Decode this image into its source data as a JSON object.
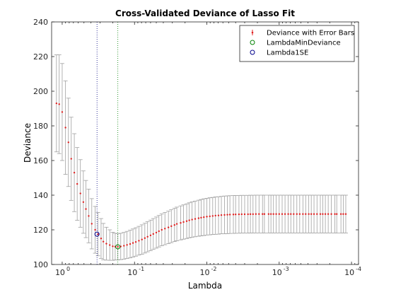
{
  "chart_data": {
    "type": "scatter",
    "title": "Cross-Validated Deviance of Lasso Fit",
    "xlabel": "Lambda",
    "ylabel": "Deviance",
    "x_scale": "log",
    "x_reversed": true,
    "xlim": [
      1.4,
      8e-05
    ],
    "ylim": [
      100,
      240
    ],
    "yticks": [
      100,
      120,
      140,
      160,
      180,
      200,
      220,
      240
    ],
    "xticks": [
      {
        "value": 1,
        "label": "10",
        "exp": "0"
      },
      {
        "value": 0.1,
        "label": "10",
        "exp": "-1"
      },
      {
        "value": 0.01,
        "label": "10",
        "exp": "-2"
      },
      {
        "value": 0.001,
        "label": "10",
        "exp": "-3"
      },
      {
        "value": 0.0001,
        "label": "10",
        "exp": "-4"
      }
    ],
    "grid": false,
    "legend_position": "top-right",
    "legend": [
      {
        "name": "Deviance with Error Bars",
        "color": "#e02020",
        "marker": "errorbar"
      },
      {
        "name": "LambdaMinDeviance",
        "color": "#008000",
        "marker": "circle"
      },
      {
        "name": "Lambda1SE",
        "color": "#00008b",
        "marker": "circle"
      }
    ],
    "colors": {
      "point": "#e02020",
      "errorbar": "#a0a0a0",
      "min_line": "#008000",
      "se_line": "#000080"
    },
    "series": [
      {
        "name": "Deviance with Error Bars",
        "x": [
          1.2,
          1.1,
          1.0,
          0.9,
          0.82,
          0.75,
          0.68,
          0.62,
          0.56,
          0.51,
          0.47,
          0.43,
          0.39,
          0.35,
          0.32,
          0.29,
          0.27,
          0.245,
          0.22,
          0.2,
          0.185,
          0.17,
          0.155,
          0.14,
          0.127,
          0.115,
          0.105,
          0.096,
          0.087,
          0.079,
          0.072,
          0.066,
          0.06,
          0.055,
          0.05,
          0.046,
          0.042,
          0.038,
          0.034,
          0.031,
          0.028,
          0.026,
          0.023,
          0.021,
          0.019,
          0.0175,
          0.016,
          0.0145,
          0.013,
          0.012,
          0.011,
          0.01,
          0.0091,
          0.0083,
          0.0076,
          0.0069,
          0.0063,
          0.0057,
          0.0052,
          0.0048,
          0.0043,
          0.004,
          0.0036,
          0.0033,
          0.003,
          0.0027,
          0.0025,
          0.0023,
          0.0021,
          0.0019,
          0.0017,
          0.0016,
          0.0014,
          0.0013,
          0.0012,
          0.0011,
          0.001,
          0.00091,
          0.00083,
          0.00075,
          0.00069,
          0.00063,
          0.00057,
          0.00052,
          0.00047,
          0.00043,
          0.00039,
          0.00036,
          0.00033,
          0.0003,
          0.00027,
          0.00025,
          0.00023,
          0.00021,
          0.00019,
          0.00017,
          0.00016,
          0.00014,
          0.00013,
          0.00012
        ],
        "y": [
          193,
          192.5,
          188,
          179,
          170.5,
          161,
          153,
          146.5,
          141,
          136,
          132,
          128,
          123.5,
          120,
          117.5,
          115,
          113.2,
          112,
          111.2,
          110.5,
          110.3,
          110.2,
          110.4,
          110.8,
          111.3,
          111.8,
          112.4,
          113,
          113.7,
          114.4,
          115.2,
          116,
          116.8,
          117.6,
          118.4,
          119.2,
          120,
          120.7,
          121.4,
          122.1,
          122.8,
          123.4,
          124,
          124.5,
          125,
          125.5,
          125.9,
          126.3,
          126.7,
          127,
          127.3,
          127.6,
          127.8,
          128,
          128.2,
          128.3,
          128.5,
          128.6,
          128.7,
          128.8,
          128.85,
          128.9,
          128.95,
          129,
          129,
          129,
          129.05,
          129.05,
          129.1,
          129.1,
          129.1,
          129.1,
          129.1,
          129.1,
          129.1,
          129.1,
          129.1,
          129.1,
          129.1,
          129.1,
          129.1,
          129.1,
          129.1,
          129.1,
          129.1,
          129.1,
          129.1,
          129.1,
          129.1,
          129.1,
          129.1,
          129.1,
          129.1,
          129.1,
          129.1,
          129.1,
          129.1,
          129.1,
          129.1,
          129.1
        ],
        "err": [
          28,
          28.5,
          28,
          27,
          25.5,
          24,
          22.5,
          21,
          19.5,
          18,
          16.5,
          15.5,
          14.5,
          13.5,
          12.5,
          11.5,
          10.5,
          9.5,
          8.8,
          8.1,
          7.7,
          7.6,
          7.6,
          7.7,
          7.8,
          8,
          8.1,
          8.2,
          8.3,
          8.5,
          8.6,
          8.7,
          8.8,
          8.9,
          9,
          9.1,
          9.2,
          9.3,
          9.4,
          9.5,
          9.6,
          9.7,
          9.8,
          9.9,
          10,
          10.1,
          10.2,
          10.3,
          10.4,
          10.5,
          10.6,
          10.6,
          10.7,
          10.7,
          10.8,
          10.8,
          10.8,
          10.9,
          10.9,
          10.9,
          10.9,
          10.9,
          10.9,
          10.9,
          10.9,
          10.9,
          10.9,
          10.9,
          10.9,
          10.9,
          10.9,
          10.9,
          10.9,
          10.9,
          10.9,
          10.9,
          10.9,
          10.9,
          10.9,
          10.9,
          10.9,
          10.9,
          10.9,
          10.9,
          10.9,
          10.9,
          10.9,
          10.9,
          10.9,
          10.9,
          10.9,
          10.9,
          10.9,
          10.9,
          10.9,
          10.9,
          10.9,
          10.9,
          10.9,
          10.9
        ]
      }
    ],
    "lambda_min": {
      "x": 0.17,
      "y": 110.2
    },
    "lambda_1se": {
      "x": 0.33,
      "y": 117.5
    }
  }
}
